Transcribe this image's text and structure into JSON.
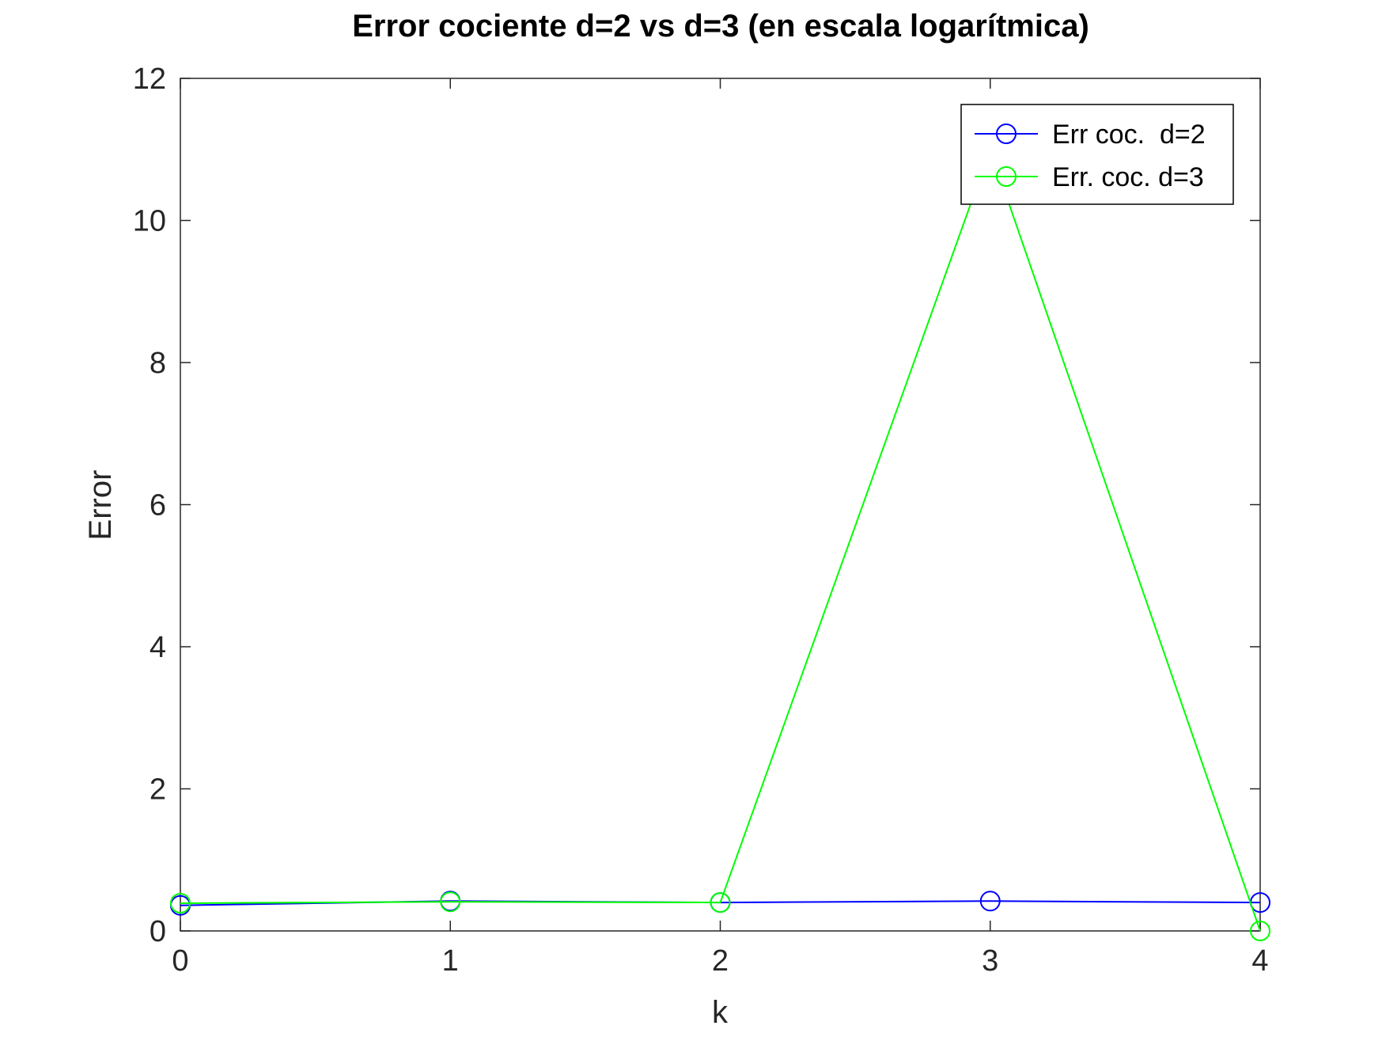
{
  "chart_data": {
    "type": "line",
    "title": "Error cociente  d=2 vs d=3 (en escala logarítmica)",
    "xlabel": "k",
    "ylabel": "Error",
    "xlim": [
      0,
      4
    ],
    "ylim": [
      0,
      12
    ],
    "xticks": [
      "0",
      "1",
      "2",
      "3",
      "4"
    ],
    "yticks": [
      "0",
      "2",
      "4",
      "6",
      "8",
      "10",
      "12"
    ],
    "grid": false,
    "legend_position": "top-right",
    "x": [
      0,
      1,
      2,
      3,
      4
    ],
    "series": [
      {
        "name": "Err coc.  d=2",
        "color": "#0000ff",
        "marker": "circle",
        "values": [
          0.36,
          0.42,
          0.4,
          0.42,
          0.4
        ]
      },
      {
        "name": "Err. coc. d=3",
        "color": "#00ff00",
        "marker": "circle",
        "values": [
          0.39,
          0.41,
          0.4,
          11.0,
          0.0
        ]
      }
    ]
  }
}
